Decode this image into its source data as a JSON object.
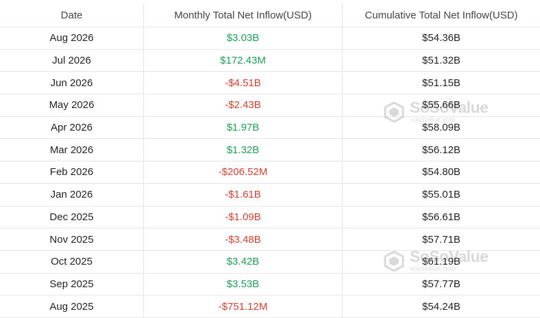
{
  "table": {
    "headers": {
      "date": "Date",
      "monthly": "Monthly Total Net Inflow(USD)",
      "cumulative": "Cumulative Total Net Inflow(USD)"
    },
    "rows": [
      {
        "date": "Aug 2026",
        "monthly": "$3.03B",
        "sign": "pos",
        "cumulative": "$54.36B"
      },
      {
        "date": "Jul 2026",
        "monthly": "$172.43M",
        "sign": "pos",
        "cumulative": "$51.32B"
      },
      {
        "date": "Jun 2026",
        "monthly": "-$4.51B",
        "sign": "neg",
        "cumulative": "$51.15B"
      },
      {
        "date": "May 2026",
        "monthly": "-$2.43B",
        "sign": "neg",
        "cumulative": "$55.66B"
      },
      {
        "date": "Apr 2026",
        "monthly": "$1.97B",
        "sign": "pos",
        "cumulative": "$58.09B"
      },
      {
        "date": "Mar 2026",
        "monthly": "$1.32B",
        "sign": "pos",
        "cumulative": "$56.12B"
      },
      {
        "date": "Feb 2026",
        "monthly": "-$206.52M",
        "sign": "neg",
        "cumulative": "$54.80B"
      },
      {
        "date": "Jan 2026",
        "monthly": "-$1.61B",
        "sign": "neg",
        "cumulative": "$55.01B"
      },
      {
        "date": "Dec 2025",
        "monthly": "-$1.09B",
        "sign": "neg",
        "cumulative": "$56.61B"
      },
      {
        "date": "Nov 2025",
        "monthly": "-$3.48B",
        "sign": "neg",
        "cumulative": "$57.71B"
      },
      {
        "date": "Oct 2025",
        "monthly": "$3.42B",
        "sign": "pos",
        "cumulative": "$61.19B"
      },
      {
        "date": "Sep 2025",
        "monthly": "$3.53B",
        "sign": "pos",
        "cumulative": "$57.77B"
      },
      {
        "date": "Aug 2025",
        "monthly": "-$751.12M",
        "sign": "neg",
        "cumulative": "$54.24B"
      }
    ]
  },
  "watermark": {
    "brand": "SoSoValue",
    "url": "sosovalue.com",
    "icon": "sosovalue-logo-icon"
  },
  "colors": {
    "positive": "#1f9d55",
    "negative": "#d23f31"
  }
}
